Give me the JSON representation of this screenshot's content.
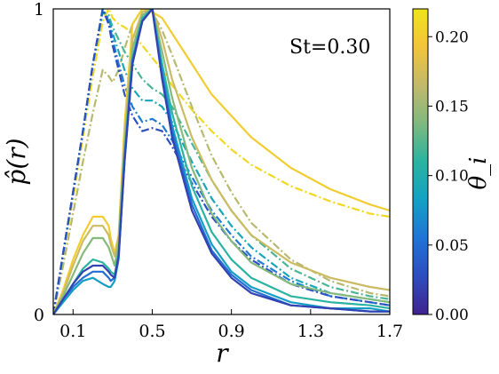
{
  "chart_data": {
    "type": "line",
    "annotation": "St=0.30",
    "xlabel": "r",
    "ylabel": "p̂(r)",
    "xlim": [
      0,
      1.7
    ],
    "ylim": [
      0,
      1
    ],
    "xticks": [
      0.1,
      0.5,
      0.9,
      1.3,
      1.7
    ],
    "xtick_labels": [
      "0.1",
      "0.5",
      "0.9",
      "1.3",
      "1.7"
    ],
    "yticks": [
      0,
      1
    ],
    "ytick_labels": [
      "0",
      "1"
    ],
    "colorbar": {
      "label": "θ_i",
      "range": [
        0,
        0.22
      ],
      "ticks": [
        0.0,
        0.05,
        0.1,
        0.15,
        0.2
      ],
      "tick_labels": [
        "0.00",
        "0.05",
        "0.10",
        "0.15",
        "0.20"
      ],
      "colormap": [
        "#40238f",
        "#2d4dbe",
        "#2073d6",
        "#14a1c4",
        "#2ab3a1",
        "#7fb97e",
        "#c2b96b",
        "#f2c43b",
        "#f0e41a"
      ]
    },
    "solid_series": [
      {
        "theta": 0.2,
        "x": [
          0,
          0.05,
          0.1,
          0.15,
          0.2,
          0.25,
          0.28,
          0.29,
          0.31,
          0.33,
          0.36,
          0.4,
          0.45,
          0.5,
          0.55,
          0.6,
          0.7,
          0.8,
          0.9,
          1.0,
          1.2,
          1.4,
          1.6,
          1.7
        ],
        "y": [
          0,
          0.08,
          0.18,
          0.26,
          0.32,
          0.32,
          0.29,
          0.25,
          0.2,
          0.26,
          0.62,
          0.95,
          1.0,
          0.99,
          0.97,
          0.92,
          0.82,
          0.72,
          0.65,
          0.58,
          0.48,
          0.41,
          0.36,
          0.34
        ]
      },
      {
        "theta": 0.17,
        "x": [
          0,
          0.05,
          0.1,
          0.15,
          0.2,
          0.25,
          0.28,
          0.29,
          0.31,
          0.33,
          0.36,
          0.4,
          0.45,
          0.5,
          0.55,
          0.6,
          0.7,
          0.8,
          0.9,
          1.0,
          1.2,
          1.4,
          1.6,
          1.7
        ],
        "y": [
          0,
          0.07,
          0.16,
          0.24,
          0.29,
          0.29,
          0.26,
          0.23,
          0.19,
          0.25,
          0.58,
          0.9,
          0.99,
          1.0,
          0.9,
          0.77,
          0.58,
          0.44,
          0.34,
          0.26,
          0.17,
          0.12,
          0.09,
          0.08
        ]
      },
      {
        "theta": 0.14,
        "x": [
          0,
          0.05,
          0.1,
          0.15,
          0.2,
          0.25,
          0.28,
          0.29,
          0.31,
          0.33,
          0.36,
          0.4,
          0.45,
          0.5,
          0.55,
          0.6,
          0.7,
          0.8,
          0.9,
          1.0,
          1.2,
          1.4,
          1.6,
          1.7
        ],
        "y": [
          0,
          0.06,
          0.13,
          0.2,
          0.25,
          0.25,
          0.22,
          0.2,
          0.16,
          0.23,
          0.55,
          0.87,
          0.98,
          1.0,
          0.86,
          0.71,
          0.48,
          0.33,
          0.24,
          0.17,
          0.1,
          0.07,
          0.05,
          0.04
        ]
      },
      {
        "theta": 0.11,
        "x": [
          0,
          0.05,
          0.1,
          0.15,
          0.2,
          0.25,
          0.28,
          0.29,
          0.31,
          0.33,
          0.36,
          0.4,
          0.45,
          0.5,
          0.55,
          0.6,
          0.7,
          0.8,
          0.9,
          1.0,
          1.2,
          1.4,
          1.6,
          1.7
        ],
        "y": [
          0,
          0.05,
          0.1,
          0.15,
          0.18,
          0.17,
          0.15,
          0.14,
          0.13,
          0.2,
          0.52,
          0.84,
          0.97,
          1.0,
          0.82,
          0.66,
          0.42,
          0.27,
          0.18,
          0.12,
          0.06,
          0.04,
          0.03,
          0.02
        ]
      },
      {
        "theta": 0.08,
        "x": [
          0,
          0.05,
          0.1,
          0.15,
          0.2,
          0.25,
          0.28,
          0.29,
          0.31,
          0.33,
          0.36,
          0.4,
          0.45,
          0.5,
          0.55,
          0.6,
          0.7,
          0.8,
          0.9,
          1.0,
          1.2,
          1.4,
          1.6,
          1.7
        ],
        "y": [
          0,
          0.04,
          0.08,
          0.11,
          0.12,
          0.1,
          0.09,
          0.09,
          0.11,
          0.18,
          0.5,
          0.82,
          0.96,
          1.0,
          0.8,
          0.62,
          0.38,
          0.23,
          0.14,
          0.09,
          0.04,
          0.02,
          0.02,
          0.01
        ]
      },
      {
        "theta": 0.05,
        "x": [
          0,
          0.05,
          0.1,
          0.15,
          0.2,
          0.25,
          0.28,
          0.29,
          0.31,
          0.33,
          0.36,
          0.4,
          0.45,
          0.5,
          0.55,
          0.6,
          0.7,
          0.8,
          0.9,
          1.0,
          1.2,
          1.4,
          1.6,
          1.7
        ],
        "y": [
          0,
          0.05,
          0.09,
          0.12,
          0.14,
          0.14,
          0.12,
          0.11,
          0.12,
          0.19,
          0.51,
          0.83,
          0.96,
          1.0,
          0.78,
          0.6,
          0.36,
          0.21,
          0.13,
          0.08,
          0.03,
          0.02,
          0.01,
          0.01
        ]
      },
      {
        "theta": 0.02,
        "x": [
          0,
          0.05,
          0.1,
          0.15,
          0.2,
          0.25,
          0.28,
          0.29,
          0.31,
          0.33,
          0.36,
          0.4,
          0.45,
          0.5,
          0.55,
          0.6,
          0.7,
          0.8,
          0.9,
          1.0,
          1.2,
          1.4,
          1.6,
          1.7
        ],
        "y": [
          0,
          0.05,
          0.1,
          0.14,
          0.16,
          0.16,
          0.14,
          0.13,
          0.12,
          0.19,
          0.5,
          0.82,
          0.96,
          1.0,
          0.77,
          0.58,
          0.34,
          0.2,
          0.12,
          0.07,
          0.03,
          0.02,
          0.01,
          0.01
        ]
      }
    ],
    "dashdot_series": [
      {
        "theta": 0.21,
        "x": [
          0,
          0.05,
          0.1,
          0.15,
          0.2,
          0.25,
          0.28,
          0.3,
          0.33,
          0.36,
          0.4,
          0.45,
          0.5,
          0.55,
          0.6,
          0.7,
          0.8,
          0.9,
          1.0,
          1.2,
          1.4,
          1.6,
          1.7
        ],
        "y": [
          0,
          0.19,
          0.38,
          0.58,
          0.78,
          0.96,
          1.0,
          0.97,
          0.95,
          0.94,
          0.92,
          0.88,
          0.84,
          0.8,
          0.75,
          0.67,
          0.6,
          0.54,
          0.49,
          0.42,
          0.37,
          0.33,
          0.32
        ]
      },
      {
        "theta": 0.16,
        "x": [
          0,
          0.05,
          0.1,
          0.15,
          0.2,
          0.25,
          0.28,
          0.3,
          0.33,
          0.36,
          0.4,
          0.45,
          0.5,
          0.55,
          0.6,
          0.7,
          0.8,
          0.9,
          1.0,
          1.2,
          1.4,
          1.6,
          1.7
        ],
        "y": [
          0,
          0.16,
          0.33,
          0.5,
          0.66,
          0.8,
          0.78,
          0.76,
          0.8,
          0.87,
          0.95,
          1.0,
          0.99,
          0.93,
          0.85,
          0.68,
          0.52,
          0.4,
          0.3,
          0.18,
          0.11,
          0.07,
          0.06
        ]
      },
      {
        "theta": 0.12,
        "x": [
          0,
          0.05,
          0.1,
          0.15,
          0.2,
          0.25,
          0.28,
          0.3,
          0.33,
          0.36,
          0.4,
          0.45,
          0.5,
          0.55,
          0.6,
          0.7,
          0.8,
          0.9,
          1.0,
          1.2,
          1.4,
          1.6,
          1.7
        ],
        "y": [
          0,
          0.2,
          0.4,
          0.6,
          0.82,
          0.99,
          0.98,
          0.94,
          0.9,
          0.86,
          0.82,
          0.77,
          0.74,
          0.72,
          0.68,
          0.56,
          0.44,
          0.34,
          0.26,
          0.15,
          0.09,
          0.06,
          0.05
        ]
      },
      {
        "theta": 0.09,
        "x": [
          0,
          0.05,
          0.1,
          0.15,
          0.2,
          0.25,
          0.28,
          0.3,
          0.33,
          0.36,
          0.4,
          0.45,
          0.5,
          0.55,
          0.6,
          0.7,
          0.8,
          0.9,
          1.0,
          1.2,
          1.4,
          1.6,
          1.7
        ],
        "y": [
          0,
          0.2,
          0.4,
          0.6,
          0.82,
          0.99,
          0.97,
          0.92,
          0.86,
          0.8,
          0.74,
          0.7,
          0.7,
          0.68,
          0.63,
          0.5,
          0.38,
          0.29,
          0.22,
          0.12,
          0.07,
          0.05,
          0.04
        ]
      },
      {
        "theta": 0.06,
        "x": [
          0,
          0.05,
          0.1,
          0.15,
          0.2,
          0.25,
          0.28,
          0.3,
          0.33,
          0.36,
          0.4,
          0.45,
          0.5,
          0.55,
          0.6,
          0.7,
          0.8,
          0.9,
          1.0,
          1.2,
          1.4,
          1.6,
          1.7
        ],
        "y": [
          0,
          0.2,
          0.4,
          0.6,
          0.82,
          1.0,
          0.96,
          0.9,
          0.82,
          0.75,
          0.68,
          0.63,
          0.64,
          0.62,
          0.57,
          0.45,
          0.34,
          0.26,
          0.19,
          0.11,
          0.06,
          0.04,
          0.03
        ]
      },
      {
        "theta": 0.03,
        "x": [
          0,
          0.05,
          0.1,
          0.15,
          0.2,
          0.25,
          0.28,
          0.3,
          0.33,
          0.36,
          0.4,
          0.45,
          0.5,
          0.55,
          0.6,
          0.7,
          0.8,
          0.9,
          1.0,
          1.2,
          1.4,
          1.6,
          1.7
        ],
        "y": [
          0,
          0.2,
          0.4,
          0.6,
          0.82,
          1.0,
          0.95,
          0.88,
          0.8,
          0.72,
          0.65,
          0.6,
          0.61,
          0.6,
          0.55,
          0.43,
          0.32,
          0.24,
          0.18,
          0.1,
          0.06,
          0.04,
          0.03
        ]
      }
    ]
  }
}
